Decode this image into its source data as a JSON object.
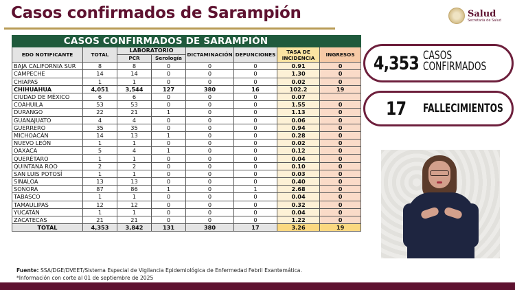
{
  "header": {
    "title": "Casos confirmados de Sarampión",
    "logo_main": "Salud",
    "logo_sub": "Secretaría de Salud"
  },
  "table": {
    "banner": "CASOS CONFIRMADOS DE SARAMPIÓN",
    "columns": {
      "state": "EDO NOTIFICANTE",
      "total": "TOTAL",
      "lab": "LABORATORIO",
      "pcr": "PCR",
      "serologia": "Serología",
      "dictaminacion": "DICTAMINACIÓN",
      "defunciones": "DEFUNCIONES",
      "tasa": "TASA DE INCIDENCIA",
      "ingresos": "INGRESOS"
    },
    "rows": [
      {
        "state": "BAJA CALIFORNIA SUR",
        "total": "8",
        "pcr": "8",
        "serologia": "0",
        "dictaminacion": "0",
        "defunciones": "0",
        "tasa": "0.91",
        "ingresos": "0"
      },
      {
        "state": "CAMPECHE",
        "total": "14",
        "pcr": "14",
        "serologia": "0",
        "dictaminacion": "0",
        "defunciones": "0",
        "tasa": "1.30",
        "ingresos": "0"
      },
      {
        "state": "CHIAPAS",
        "total": "1",
        "pcr": "1",
        "serologia": "0",
        "dictaminacion": "0",
        "defunciones": "0",
        "tasa": "0.02",
        "ingresos": "0"
      },
      {
        "state": "CHIHUAHUA",
        "total": "4,051",
        "pcr": "3,544",
        "serologia": "127",
        "dictaminacion": "380",
        "defunciones": "16",
        "tasa": "102.2",
        "ingresos": "19"
      },
      {
        "state": "CIUDAD DE MÉXICO",
        "total": "6",
        "pcr": "6",
        "serologia": "0",
        "dictaminacion": "0",
        "defunciones": "0",
        "tasa": "0.07",
        "ingresos": ""
      },
      {
        "state": "COAHUILA",
        "total": "53",
        "pcr": "53",
        "serologia": "0",
        "dictaminacion": "0",
        "defunciones": "0",
        "tasa": "1.55",
        "ingresos": "0"
      },
      {
        "state": "DURANGO",
        "total": "22",
        "pcr": "21",
        "serologia": "1",
        "dictaminacion": "0",
        "defunciones": "0",
        "tasa": "1.13",
        "ingresos": "0"
      },
      {
        "state": "GUANAJUATO",
        "total": "4",
        "pcr": "4",
        "serologia": "0",
        "dictaminacion": "0",
        "defunciones": "0",
        "tasa": "0.06",
        "ingresos": "0"
      },
      {
        "state": "GUERRERO",
        "total": "35",
        "pcr": "35",
        "serologia": "0",
        "dictaminacion": "0",
        "defunciones": "0",
        "tasa": "0.94",
        "ingresos": "0"
      },
      {
        "state": "MICHOACÁN",
        "total": "14",
        "pcr": "13",
        "serologia": "1",
        "dictaminacion": "0",
        "defunciones": "0",
        "tasa": "0.28",
        "ingresos": "0"
      },
      {
        "state": "NUEVO LEÓN",
        "total": "1",
        "pcr": "1",
        "serologia": "0",
        "dictaminacion": "0",
        "defunciones": "0",
        "tasa": "0.02",
        "ingresos": "0"
      },
      {
        "state": "OAXACA",
        "total": "5",
        "pcr": "4",
        "serologia": "1",
        "dictaminacion": "0",
        "defunciones": "0",
        "tasa": "0.12",
        "ingresos": "0"
      },
      {
        "state": "QUERÉTARO",
        "total": "1",
        "pcr": "1",
        "serologia": "0",
        "dictaminacion": "0",
        "defunciones": "0",
        "tasa": "0.04",
        "ingresos": "0"
      },
      {
        "state": "QUINTANA ROO",
        "total": "2",
        "pcr": "2",
        "serologia": "0",
        "dictaminacion": "0",
        "defunciones": "0",
        "tasa": "0.10",
        "ingresos": "0"
      },
      {
        "state": "SAN LUIS POTOSÍ",
        "total": "1",
        "pcr": "1",
        "serologia": "0",
        "dictaminacion": "0",
        "defunciones": "0",
        "tasa": "0.03",
        "ingresos": "0"
      },
      {
        "state": "SINALOA",
        "total": "13",
        "pcr": "13",
        "serologia": "0",
        "dictaminacion": "0",
        "defunciones": "0",
        "tasa": "0.40",
        "ingresos": "0"
      },
      {
        "state": "SONORA",
        "total": "87",
        "pcr": "86",
        "serologia": "1",
        "dictaminacion": "0",
        "defunciones": "1",
        "tasa": "2.68",
        "ingresos": "0"
      },
      {
        "state": "TABASCO",
        "total": "1",
        "pcr": "1",
        "serologia": "0",
        "dictaminacion": "0",
        "defunciones": "0",
        "tasa": "0.04",
        "ingresos": "0"
      },
      {
        "state": "TAMAULIPAS",
        "total": "12",
        "pcr": "12",
        "serologia": "0",
        "dictaminacion": "0",
        "defunciones": "0",
        "tasa": "0.32",
        "ingresos": "0"
      },
      {
        "state": "YUCATÁN",
        "total": "1",
        "pcr": "1",
        "serologia": "0",
        "dictaminacion": "0",
        "defunciones": "0",
        "tasa": "0.04",
        "ingresos": "0"
      },
      {
        "state": "ZACATECAS",
        "total": "21",
        "pcr": "21",
        "serologia": "0",
        "dictaminacion": "0",
        "defunciones": "0",
        "tasa": "1.22",
        "ingresos": "0"
      }
    ],
    "total_row": {
      "state": "TOTAL",
      "total": "4,353",
      "pcr": "3,842",
      "serologia": "131",
      "dictaminacion": "380",
      "defunciones": "17",
      "tasa": "3.26",
      "ingresos": "19"
    }
  },
  "stats": {
    "cases_number": "4,353",
    "cases_label_1": "CASOS",
    "cases_label_2": "CONFIRMADOS",
    "deaths_number": "17",
    "deaths_label": "FALLECIMIENTOS"
  },
  "footnote": {
    "source_label": "Fuente:",
    "source_text": " SSA/DGE/DVEET/Sistema Especial de Vigilancia Epidemiológica de Enfermedad Febril Exantemática.",
    "cutoff": "*Información con corte al 01 de septiembre  de 2025"
  },
  "colors": {
    "title": "#5e1230",
    "banner_green": "#1f5a3c",
    "gold_rule": "#b89b55",
    "tasa_header": "#fbe4a2",
    "ingresos_header": "#f7caa6",
    "pill_border": "#6d1f3c"
  }
}
